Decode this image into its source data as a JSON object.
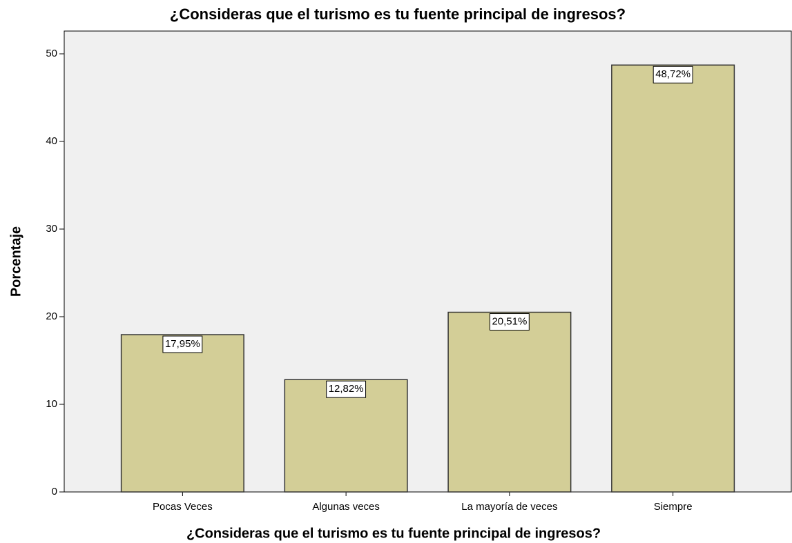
{
  "chart_data": {
    "type": "bar",
    "title": "¿Consideras que el turismo es tu fuente principal de ingresos?",
    "x_label": "¿Consideras que el turismo es tu fuente principal de ingresos?",
    "y_label": "Porcentaje",
    "categories": [
      "Pocas Veces",
      "Algunas veces",
      "La mayoría de veces",
      "Siempre"
    ],
    "values": [
      17.95,
      12.82,
      20.51,
      48.72
    ],
    "value_labels": [
      "17,95%",
      "12,82%",
      "20,51%",
      "48,72%"
    ],
    "color": "#d3ce97",
    "ylim": [
      0,
      52.6
    ],
    "yticks": [
      0,
      10,
      20,
      30,
      40,
      50
    ],
    "grid": false
  }
}
